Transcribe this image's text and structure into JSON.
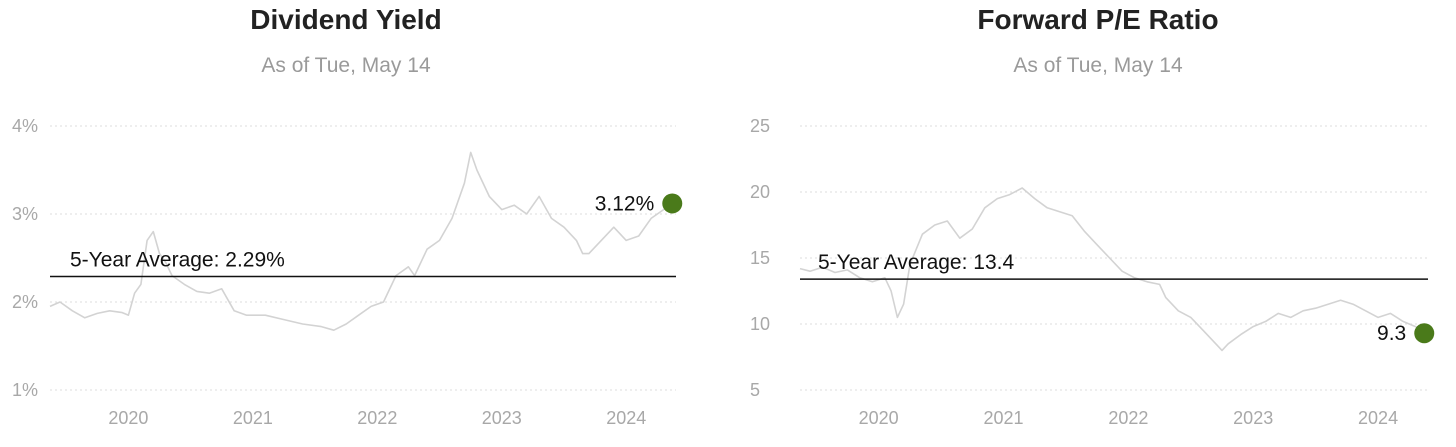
{
  "chart_data": [
    {
      "type": "line",
      "title": "Dividend Yield",
      "subtitle": "As of Tue, May 14",
      "y_tick_labels": [
        "4%",
        "3%",
        "2%",
        "1%"
      ],
      "y_ticks": [
        4,
        3,
        2,
        1
      ],
      "x_tick_labels": [
        "2020",
        "2021",
        "2022",
        "2023",
        "2024"
      ],
      "x_ticks": [
        2020,
        2021,
        2022,
        2023,
        2024
      ],
      "xlim": [
        2019.37,
        2024.4
      ],
      "ylim": [
        1,
        4
      ],
      "grid": true,
      "line_color": "#d3d3d3",
      "average": {
        "value": 2.29,
        "label": "5-Year Average: 2.29%"
      },
      "current": {
        "x": 2024.37,
        "value": 3.12,
        "label": "3.12%",
        "color": "#4a7a1a"
      },
      "series": [
        {
          "x": [
            2019.37,
            2019.45,
            2019.55,
            2019.65,
            2019.75,
            2019.85,
            2019.95,
            2020.0,
            2020.05,
            2020.1,
            2020.15,
            2020.2,
            2020.25,
            2020.3,
            2020.35,
            2020.45,
            2020.55,
            2020.65,
            2020.75,
            2020.85,
            2020.95,
            2021.1,
            2021.25,
            2021.4,
            2021.55,
            2021.65,
            2021.75,
            2021.85,
            2021.95,
            2022.05,
            2022.15,
            2022.25,
            2022.3,
            2022.4,
            2022.5,
            2022.6,
            2022.7,
            2022.75,
            2022.8,
            2022.9,
            2023.0,
            2023.1,
            2023.2,
            2023.3,
            2023.4,
            2023.5,
            2023.6,
            2023.65,
            2023.7,
            2023.8,
            2023.9,
            2024.0,
            2024.1,
            2024.2,
            2024.3,
            2024.37
          ],
          "values": [
            1.95,
            2.0,
            1.9,
            1.82,
            1.87,
            1.9,
            1.88,
            1.85,
            2.1,
            2.2,
            2.7,
            2.8,
            2.55,
            2.45,
            2.3,
            2.2,
            2.12,
            2.1,
            2.15,
            1.9,
            1.85,
            1.85,
            1.8,
            1.75,
            1.72,
            1.68,
            1.75,
            1.85,
            1.95,
            2.0,
            2.3,
            2.4,
            2.3,
            2.6,
            2.7,
            2.95,
            3.35,
            3.7,
            3.5,
            3.2,
            3.05,
            3.1,
            3.0,
            3.2,
            2.95,
            2.85,
            2.7,
            2.55,
            2.55,
            2.7,
            2.85,
            2.7,
            2.75,
            2.95,
            3.05,
            3.12
          ]
        }
      ]
    },
    {
      "type": "line",
      "title": "Forward P/E Ratio",
      "subtitle": "As of Tue, May 14",
      "y_tick_labels": [
        "25",
        "20",
        "15",
        "10",
        "5"
      ],
      "y_ticks": [
        25,
        20,
        15,
        10,
        5
      ],
      "x_tick_labels": [
        "2020",
        "2021",
        "2022",
        "2023",
        "2024"
      ],
      "x_ticks": [
        2020,
        2021,
        2022,
        2023,
        2024
      ],
      "xlim": [
        2019.37,
        2024.4
      ],
      "ylim": [
        5,
        25
      ],
      "grid": true,
      "line_color": "#d3d3d3",
      "average": {
        "value": 13.4,
        "label": "5-Year Average: 13.4"
      },
      "current": {
        "x": 2024.37,
        "value": 9.3,
        "label": "9.3",
        "color": "#4a7a1a"
      },
      "series": [
        {
          "x": [
            2019.37,
            2019.45,
            2019.55,
            2019.65,
            2019.75,
            2019.85,
            2019.95,
            2020.05,
            2020.1,
            2020.15,
            2020.2,
            2020.25,
            2020.35,
            2020.45,
            2020.55,
            2020.65,
            2020.75,
            2020.85,
            2020.95,
            2021.05,
            2021.15,
            2021.25,
            2021.35,
            2021.45,
            2021.55,
            2021.65,
            2021.75,
            2021.85,
            2021.95,
            2022.05,
            2022.15,
            2022.25,
            2022.3,
            2022.4,
            2022.5,
            2022.6,
            2022.7,
            2022.75,
            2022.8,
            2022.9,
            2023.0,
            2023.1,
            2023.2,
            2023.3,
            2023.4,
            2023.5,
            2023.6,
            2023.7,
            2023.8,
            2023.9,
            2024.0,
            2024.1,
            2024.2,
            2024.3,
            2024.37
          ],
          "values": [
            14.2,
            14.0,
            14.3,
            13.9,
            14.1,
            13.5,
            13.2,
            13.5,
            12.5,
            10.5,
            11.5,
            14.5,
            16.8,
            17.5,
            17.8,
            16.5,
            17.2,
            18.8,
            19.5,
            19.8,
            20.3,
            19.5,
            18.8,
            18.5,
            18.2,
            17.0,
            16.0,
            15.0,
            14.0,
            13.5,
            13.2,
            13.0,
            12.0,
            11.0,
            10.5,
            9.5,
            8.5,
            8.0,
            8.5,
            9.2,
            9.8,
            10.2,
            10.8,
            10.5,
            11.0,
            11.2,
            11.5,
            11.8,
            11.5,
            11.0,
            10.5,
            10.8,
            10.2,
            9.8,
            9.3
          ]
        }
      ]
    }
  ]
}
